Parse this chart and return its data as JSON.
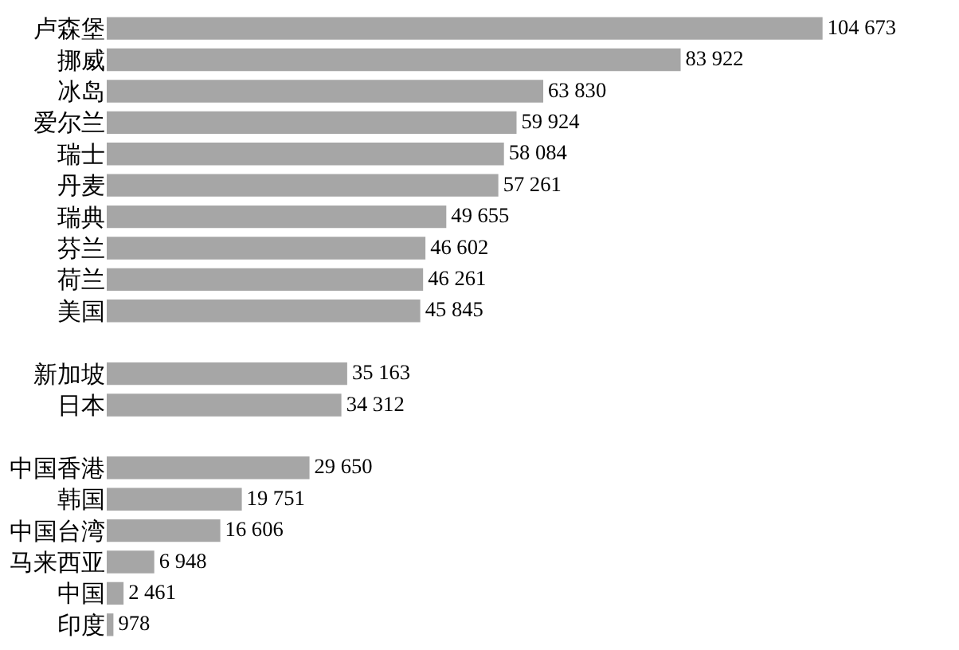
{
  "chart_data": {
    "type": "bar",
    "orientation": "horizontal",
    "categories": [
      "卢森堡",
      "挪威",
      "冰岛",
      "爱尔兰",
      "瑞士",
      "丹麦",
      "瑞典",
      "芬兰",
      "荷兰",
      "美国",
      null,
      "新加坡",
      "日本",
      null,
      "中国香港",
      "韩国",
      "中国台湾",
      "马来西亚",
      "中国",
      "印度"
    ],
    "values": [
      104673,
      83922,
      63830,
      59924,
      58084,
      57261,
      49655,
      46602,
      46261,
      45845,
      null,
      35163,
      34312,
      null,
      29650,
      19751,
      16606,
      6948,
      2461,
      978
    ],
    "value_labels": [
      "104 673",
      "83 922",
      "63 830",
      "59 924",
      "58 084",
      "57 261",
      "49 655",
      "46 602",
      "46 261",
      "45 845",
      null,
      "35 163",
      "34 312",
      null,
      "29 650",
      "19 751",
      "16 606",
      "6 948",
      "2 461",
      "978"
    ],
    "color": "#a6a6a6"
  }
}
